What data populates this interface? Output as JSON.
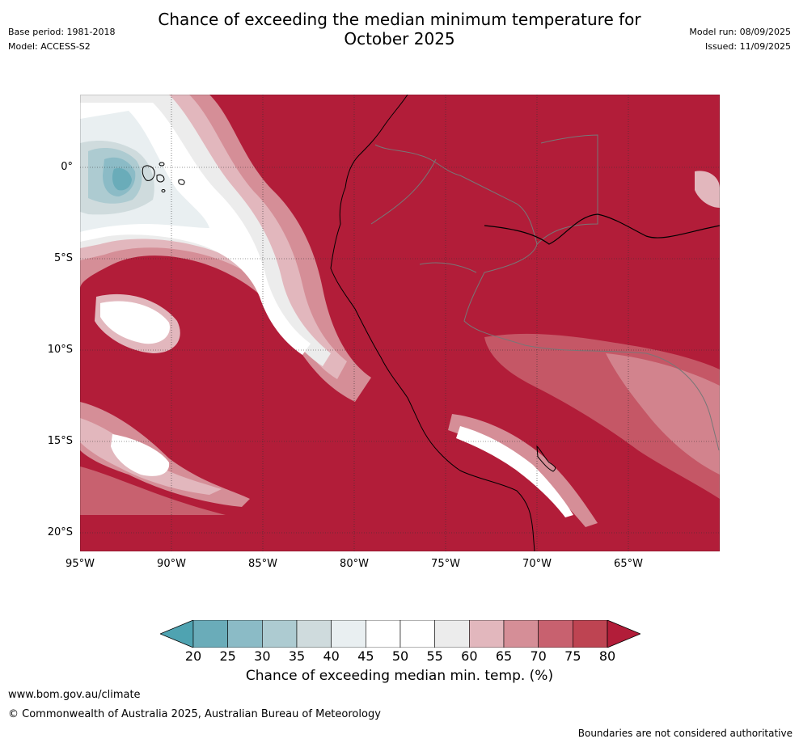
{
  "header": {
    "title_line1": "Chance of exceeding the median minimum temperature for",
    "title_line2": "October 2025",
    "base_period": "Base period: 1981-2018",
    "model": "Model: ACCESS-S2",
    "model_run": "Model run: 08/09/2025",
    "issued": "Issued: 11/09/2025"
  },
  "map": {
    "lat_labels": [
      "0°",
      "5°S",
      "10°S",
      "15°S",
      "20°S"
    ],
    "lon_labels": [
      "95°W",
      "90°W",
      "85°W",
      "80°W",
      "75°W",
      "70°W",
      "65°W"
    ],
    "dominant_color": "#b21d39",
    "ocean_warm_color": "#b21d39"
  },
  "colorbar": {
    "title": "Chance of exceeding median min. temp. (%)",
    "ticks": [
      "20",
      "25",
      "30",
      "35",
      "40",
      "45",
      "50",
      "55",
      "60",
      "65",
      "70",
      "75",
      "80"
    ],
    "colors": [
      "#4fa3b1",
      "#6aacb9",
      "#8bbbc6",
      "#adcbd1",
      "#cfdbdd",
      "#e9eff1",
      "#ffffff",
      "#ffffff",
      "#ececec",
      "#e2b7bd",
      "#d58e97",
      "#c8616f",
      "#be4452",
      "#b21d39"
    ]
  },
  "footer": {
    "url": "www.bom.gov.au/climate",
    "copyright": "© Commonwealth of Australia 2025, Australian Bureau of Meteorology",
    "disclaimer": "Boundaries are not considered authoritative"
  }
}
